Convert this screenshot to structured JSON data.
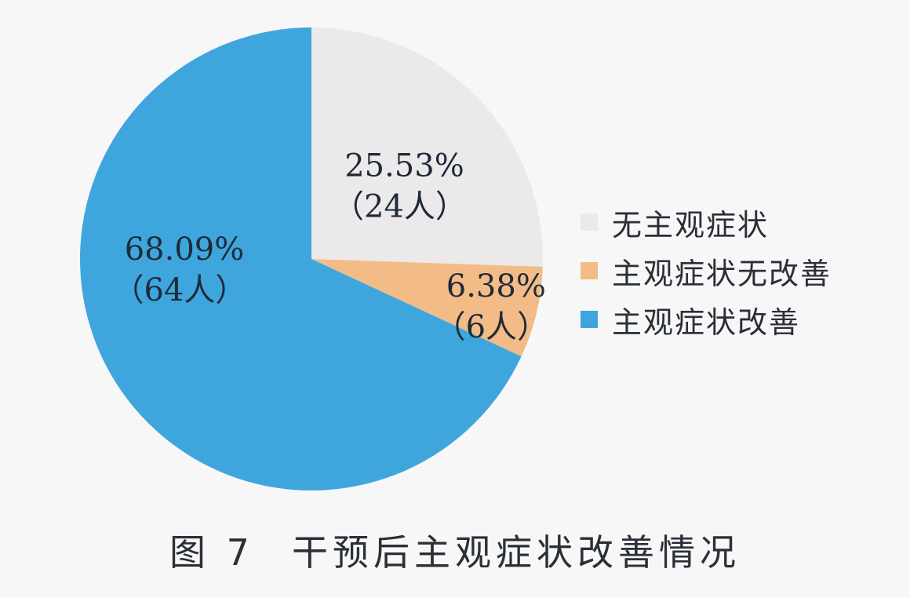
{
  "chart_data": {
    "type": "pie",
    "title": "干预后主观症状改善情况",
    "figure_label": "图 7",
    "legend_position": "right",
    "slices": [
      {
        "name": "无主观症状",
        "percent_label": "25.53%",
        "count_label": "（24人）",
        "value": 24,
        "percent": 25.53,
        "color": "#ebe9e9"
      },
      {
        "name": "主观症状无改善",
        "percent_label": "6.38%",
        "count_label": "（6人）",
        "value": 6,
        "percent": 6.38,
        "color": "#f3bc86"
      },
      {
        "name": "主观症状改善",
        "percent_label": "68.09%",
        "count_label": "（64人）",
        "value": 64,
        "percent": 68.09,
        "color": "#3fa6dd"
      }
    ]
  }
}
